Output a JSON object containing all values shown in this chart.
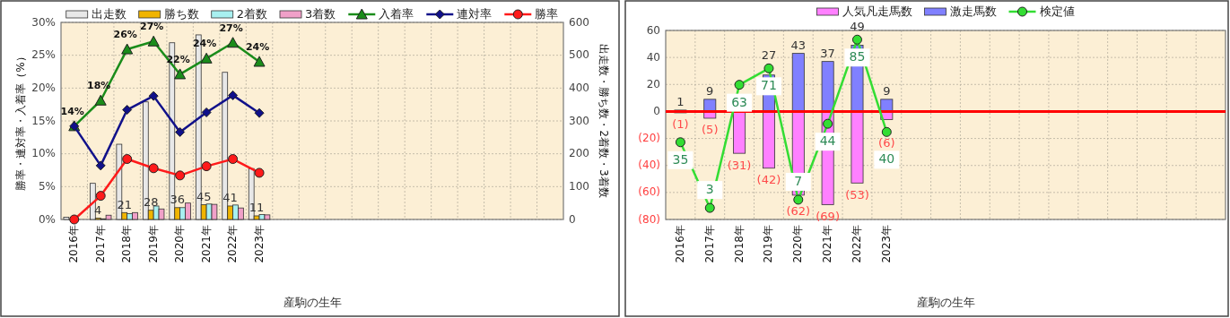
{
  "chart_data": [
    {
      "type": "bar",
      "xlabel": "産駒の生年",
      "ylabel": "勝率・連対率・入着率（%）",
      "y2label": "出走数・勝ち数・2着数・3着数",
      "categories": [
        "2016年",
        "2017年",
        "2018年",
        "2019年",
        "2020年",
        "2021年",
        "2022年",
        "2023年",
        null,
        null,
        null,
        null,
        null,
        null,
        null,
        null,
        null,
        null,
        null
      ],
      "ylim": [
        0,
        30
      ],
      "yticks": [
        {
          "value": 0,
          "label": "0%"
        },
        {
          "value": 5,
          "label": "5%"
        },
        {
          "value": 10,
          "label": "10%"
        },
        {
          "value": 15,
          "label": "15%"
        },
        {
          "value": 20,
          "label": "20%"
        },
        {
          "value": 25,
          "label": "25%"
        },
        {
          "value": 30,
          "label": "30%"
        }
      ],
      "y2lim": [
        0,
        600
      ],
      "y2ticks": [
        0,
        100,
        200,
        300,
        400,
        500,
        600
      ],
      "grid": true,
      "legend": "top",
      "series": [
        {
          "name": "出走数",
          "axis": "y2",
          "color": "#e8e8e8",
          "values": [
            7,
            110,
            229,
            358,
            538,
            562,
            448,
            155,
            null,
            null,
            null,
            null,
            null,
            null,
            null,
            null,
            null,
            null,
            null
          ]
        },
        {
          "name": "勝ち数",
          "axis": "y2",
          "color": "#f0b400",
          "values": [
            0,
            4,
            21,
            28,
            36,
            45,
            41,
            11,
            null,
            null,
            null,
            null,
            null,
            null,
            null,
            null,
            null,
            null,
            null
          ],
          "value_labels": [
            null,
            "4",
            "21",
            "28",
            "36",
            "45",
            "41",
            "11",
            null,
            null,
            null,
            null,
            null,
            null,
            null,
            null,
            null,
            null,
            null
          ]
        },
        {
          "name": "2着数",
          "axis": "y2",
          "color": "#a8f0f0",
          "values": [
            0,
            2,
            18,
            41,
            36,
            47,
            44,
            15,
            null,
            null,
            null,
            null,
            null,
            null,
            null,
            null,
            null,
            null,
            null
          ]
        },
        {
          "name": "3着数",
          "axis": "y2",
          "color": "#f0a0c8",
          "values": [
            0,
            13,
            21,
            32,
            50,
            46,
            35,
            14,
            null,
            null,
            null,
            null,
            null,
            null,
            null,
            null,
            null,
            null,
            null
          ]
        },
        {
          "name": "入着率",
          "type": "line",
          "axis": "y",
          "color": "#1a8c1a",
          "marker": "triangle",
          "values": [
            14.2,
            18.1,
            25.9,
            27.1,
            22.1,
            24.5,
            26.9,
            24.0,
            null,
            null,
            null,
            null,
            null,
            null,
            null,
            null,
            null,
            null,
            null
          ],
          "value_labels": [
            "14%",
            "18%",
            "26%",
            "27%",
            "22%",
            "24%",
            "27%",
            "24%",
            null,
            null,
            null,
            null,
            null,
            null,
            null,
            null,
            null,
            null,
            null
          ]
        },
        {
          "name": "連対率",
          "type": "line",
          "axis": "y",
          "color": "#10108a",
          "marker": "diamond",
          "values": [
            14.2,
            8.2,
            16.7,
            18.8,
            13.3,
            16.3,
            18.9,
            16.2,
            null,
            null,
            null,
            null,
            null,
            null,
            null,
            null,
            null,
            null,
            null
          ]
        },
        {
          "name": "勝率",
          "type": "line",
          "axis": "y",
          "color": "#ff1a1a",
          "marker": "circle",
          "values": [
            0,
            3.6,
            9.2,
            7.8,
            6.7,
            8.1,
            9.2,
            7.1,
            null,
            null,
            null,
            null,
            null,
            null,
            null,
            null,
            null,
            null,
            null
          ]
        }
      ]
    },
    {
      "type": "bar",
      "stacked": true,
      "xlabel": "産駒の生年",
      "categories": [
        "2016年",
        "2017年",
        "2018年",
        "2019年",
        "2020年",
        "2021年",
        "2022年",
        "2023年",
        null,
        null,
        null,
        null,
        null,
        null,
        null,
        null,
        null,
        null,
        null
      ],
      "ylim": [
        -80,
        60
      ],
      "yticks": [
        60,
        40,
        20,
        0,
        {
          "value": -20,
          "label": "(20)"
        },
        {
          "value": -40,
          "label": "(40)"
        },
        {
          "value": -60,
          "label": "(60)"
        },
        {
          "value": -80,
          "label": "(80)"
        }
      ],
      "y2lim": [
        -2.63,
        89.47
      ],
      "grid": true,
      "legend": "top",
      "ref_lines": [
        {
          "axis": "y",
          "value": 0,
          "color": "#ff0000"
        }
      ],
      "series": [
        {
          "name": "人気凡走馬数",
          "color": "#ff80ff",
          "values": [
            -1,
            -5,
            -31,
            -42,
            -62,
            -69,
            -53,
            -6,
            null,
            null,
            null,
            null,
            null,
            null,
            null,
            null,
            null,
            null,
            null
          ],
          "value_labels": [
            "(1)",
            "(5)",
            "(31)",
            "(42)",
            "(62)",
            "(69)",
            "(53)",
            "(6)",
            null,
            null,
            null,
            null,
            null,
            null,
            null,
            null,
            null,
            null,
            null
          ]
        },
        {
          "name": "激走馬数",
          "color": "#8080ff",
          "values": [
            1,
            9,
            0,
            27,
            43,
            37,
            49,
            9,
            null,
            null,
            null,
            null,
            null,
            null,
            null,
            null,
            null,
            null,
            null
          ],
          "value_labels": [
            "1",
            "9",
            null,
            "27",
            "43",
            "37",
            "49",
            "9",
            null,
            null,
            null,
            null,
            null,
            null,
            null,
            null,
            null,
            null,
            null
          ]
        },
        {
          "name": "検定値",
          "type": "line",
          "axis": "y2",
          "color": "#33dd33",
          "marker": "circle",
          "values": [
            35,
            3,
            63,
            71,
            7,
            44,
            85,
            40,
            null,
            null,
            null,
            null,
            null,
            null,
            null,
            null,
            null,
            null,
            null
          ],
          "value_labels": [
            "35",
            "3",
            "63",
            "71",
            "7",
            "44",
            "85",
            "40",
            null,
            null,
            null,
            null,
            null,
            null,
            null,
            null,
            null,
            null,
            null
          ]
        }
      ]
    }
  ]
}
